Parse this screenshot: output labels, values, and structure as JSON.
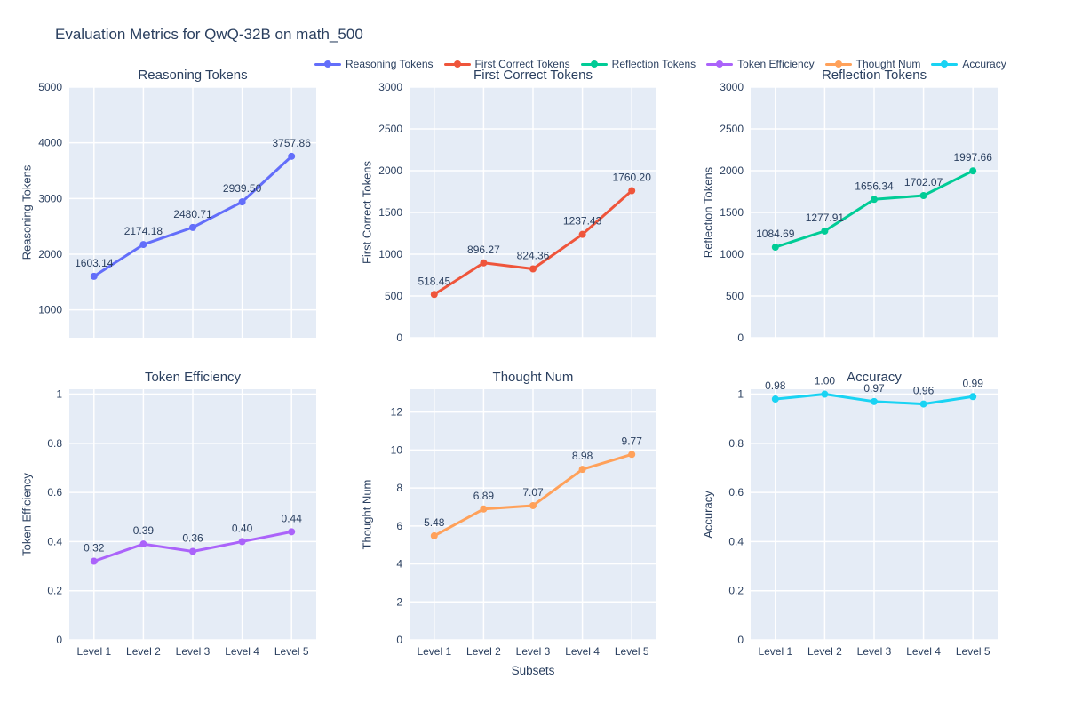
{
  "app": {
    "title": "Evaluation Metrics for QwQ-32B on math_500"
  },
  "xaxis": {
    "title": "Subsets"
  },
  "categories": [
    "Level 1",
    "Level 2",
    "Level 3",
    "Level 4",
    "Level 5"
  ],
  "colors": {
    "text": "#2a3f5f",
    "plot_bg": "#e5ecf6",
    "grid": "#ffffff",
    "page_bg": "#ffffff",
    "reasoning": "#636efa",
    "first_correct": "#ef553b",
    "reflection": "#00cc96",
    "efficiency": "#ab63fa",
    "thought": "#ffa15a",
    "accuracy": "#19d3f3"
  },
  "legend": {
    "position": "top-center",
    "items": [
      {
        "label": "Reasoning Tokens",
        "color": "#636efa"
      },
      {
        "label": "First Correct Tokens",
        "color": "#ef553b"
      },
      {
        "label": "Reflection Tokens",
        "color": "#00cc96"
      },
      {
        "label": "Token Efficiency",
        "color": "#ab63fa"
      },
      {
        "label": "Thought Num",
        "color": "#ffa15a"
      },
      {
        "label": "Accuracy",
        "color": "#19d3f3"
      }
    ]
  },
  "chart_data": [
    {
      "type": "line",
      "title": "Reasoning Tokens",
      "ylabel": "Reasoning Tokens",
      "xlabel": "",
      "series_name": "Reasoning Tokens",
      "color": "#636efa",
      "categories": [
        "Level 1",
        "Level 2",
        "Level 3",
        "Level 4",
        "Level 5"
      ],
      "values": [
        1603.14,
        2174.18,
        2480.71,
        2939.5,
        3757.86
      ],
      "labels": [
        "1603.14",
        "2174.18",
        "2480.71",
        "2939.50",
        "3757.86"
      ],
      "ylim": [
        500,
        5000
      ],
      "yticks": [
        1000,
        2000,
        3000,
        4000,
        5000
      ],
      "ytick_labels": [
        "1000",
        "2000",
        "3000",
        "4000",
        "5000"
      ],
      "grid": true,
      "show_x_tick_labels": false
    },
    {
      "type": "line",
      "title": "First Correct Tokens",
      "ylabel": "First Correct Tokens",
      "xlabel": "",
      "series_name": "First Correct Tokens",
      "color": "#ef553b",
      "categories": [
        "Level 1",
        "Level 2",
        "Level 3",
        "Level 4",
        "Level 5"
      ],
      "values": [
        518.45,
        896.27,
        824.36,
        1237.43,
        1760.2
      ],
      "labels": [
        "518.45",
        "896.27",
        "824.36",
        "1237.43",
        "1760.20"
      ],
      "ylim": [
        0,
        3000
      ],
      "yticks": [
        0,
        500,
        1000,
        1500,
        2000,
        2500,
        3000
      ],
      "ytick_labels": [
        "0",
        "500",
        "1000",
        "1500",
        "2000",
        "2500",
        "3000"
      ],
      "grid": true,
      "show_x_tick_labels": false
    },
    {
      "type": "line",
      "title": "Reflection Tokens",
      "ylabel": "Reflection Tokens",
      "xlabel": "",
      "series_name": "Reflection Tokens",
      "color": "#00cc96",
      "categories": [
        "Level 1",
        "Level 2",
        "Level 3",
        "Level 4",
        "Level 5"
      ],
      "values": [
        1084.69,
        1277.91,
        1656.34,
        1702.07,
        1997.66
      ],
      "labels": [
        "1084.69",
        "1277.91",
        "1656.34",
        "1702.07",
        "1997.66"
      ],
      "ylim": [
        0,
        3000
      ],
      "yticks": [
        0,
        500,
        1000,
        1500,
        2000,
        2500,
        3000
      ],
      "ytick_labels": [
        "0",
        "500",
        "1000",
        "1500",
        "2000",
        "2500",
        "3000"
      ],
      "grid": true,
      "show_x_tick_labels": false
    },
    {
      "type": "line",
      "title": "Token Efficiency",
      "ylabel": "Token Efficiency",
      "xlabel": "",
      "series_name": "Token Efficiency",
      "color": "#ab63fa",
      "categories": [
        "Level 1",
        "Level 2",
        "Level 3",
        "Level 4",
        "Level 5"
      ],
      "values": [
        0.32,
        0.39,
        0.36,
        0.4,
        0.44
      ],
      "labels": [
        "0.32",
        "0.39",
        "0.36",
        "0.40",
        "0.44"
      ],
      "ylim": [
        0,
        1.02
      ],
      "yticks": [
        0,
        0.2,
        0.4,
        0.6,
        0.8,
        1
      ],
      "ytick_labels": [
        "0",
        "0.2",
        "0.4",
        "0.6",
        "0.8",
        "1"
      ],
      "grid": true,
      "show_x_tick_labels": true
    },
    {
      "type": "line",
      "title": "Thought Num",
      "ylabel": "Thought Num",
      "xlabel": "",
      "series_name": "Thought Num",
      "color": "#ffa15a",
      "categories": [
        "Level 1",
        "Level 2",
        "Level 3",
        "Level 4",
        "Level 5"
      ],
      "values": [
        5.48,
        6.89,
        7.07,
        8.98,
        9.77
      ],
      "labels": [
        "5.48",
        "6.89",
        "7.07",
        "8.98",
        "9.77"
      ],
      "ylim": [
        0,
        13.2
      ],
      "yticks": [
        0,
        2,
        4,
        6,
        8,
        10,
        12
      ],
      "ytick_labels": [
        "0",
        "2",
        "4",
        "6",
        "8",
        "10",
        "12"
      ],
      "grid": true,
      "show_x_tick_labels": true
    },
    {
      "type": "line",
      "title": "Accuracy",
      "ylabel": "Accuracy",
      "xlabel": "",
      "series_name": "Accuracy",
      "color": "#19d3f3",
      "categories": [
        "Level 1",
        "Level 2",
        "Level 3",
        "Level 4",
        "Level 5"
      ],
      "values": [
        0.98,
        1.0,
        0.97,
        0.96,
        0.99
      ],
      "labels": [
        "0.98",
        "1.00",
        "0.97",
        "0.96",
        "0.99"
      ],
      "ylim": [
        0,
        1.02
      ],
      "yticks": [
        0,
        0.2,
        0.4,
        0.6,
        0.8,
        1
      ],
      "ytick_labels": [
        "0",
        "0.2",
        "0.4",
        "0.6",
        "0.8",
        "1"
      ],
      "grid": true,
      "show_x_tick_labels": true
    }
  ]
}
